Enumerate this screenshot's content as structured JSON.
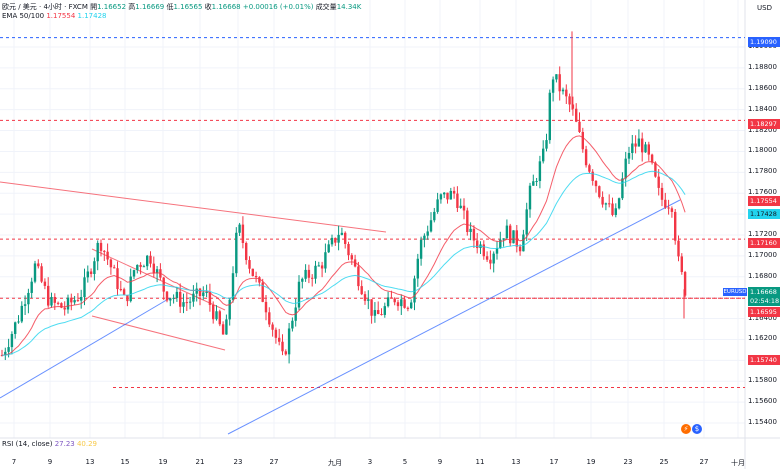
{
  "header": {
    "title": "欧元 / 美元 · 4小时 · FXCM",
    "o_label": "開",
    "o": "1.16652",
    "h_label": "高",
    "h": "1.16669",
    "l_label": "低",
    "l": "1.16565",
    "c_label": "收",
    "c": "1.16668",
    "change": "+0.00016 (+0.01%)",
    "vol_label": "成交量",
    "vol": "14.34K"
  },
  "ema": {
    "label": "EMA 50/100",
    "v1": "1.17554",
    "v2": "1.17428"
  },
  "rsi": {
    "label": "RSI (14, close)",
    "v1": "27.23",
    "v2": "40.29"
  },
  "currency": "USD",
  "symbol_tag": "EURUSD",
  "price_tags": [
    {
      "value": "1.19090",
      "color": "#2962ff",
      "text": "#ffffff"
    },
    {
      "value": "1.18297",
      "color": "#f23645",
      "text": "#ffffff"
    },
    {
      "value": "1.17554",
      "color": "#f23645",
      "text": "#ffffff"
    },
    {
      "value": "1.17428",
      "color": "#22d3ee",
      "text": "#131722"
    },
    {
      "value": "1.17160",
      "color": "#f23645",
      "text": "#ffffff"
    },
    {
      "value": "1.16668",
      "color": "#089981",
      "text": "#ffffff"
    },
    {
      "value": "02:54:18",
      "color": "#089981",
      "text": "#ffffff"
    },
    {
      "value": "1.16595",
      "color": "#f23645",
      "text": "#ffffff"
    },
    {
      "value": "1.15740",
      "color": "#f23645",
      "text": "#ffffff"
    }
  ],
  "chart_data": {
    "type": "candlestick",
    "y_ticks": [
      "1.19000",
      "1.18800",
      "1.18600",
      "1.18400",
      "1.18200",
      "1.18000",
      "1.17800",
      "1.17600",
      "1.17400",
      "1.17200",
      "1.17000",
      "1.16800",
      "1.16600",
      "1.16400",
      "1.16200",
      "1.16000",
      "1.15800",
      "1.15600",
      "1.15400"
    ],
    "x_ticks": [
      "7",
      "9",
      "13",
      "15",
      "19",
      "21",
      "23",
      "27",
      "九月",
      "3",
      "5",
      "9",
      "11",
      "13",
      "17",
      "19",
      "23",
      "25",
      "27",
      "十月"
    ],
    "horizontal_levels": [
      1.1909,
      1.18297,
      1.1716,
      1.16595,
      1.1574
    ],
    "colors": {
      "up": "#089981",
      "down": "#f23645",
      "ema50": "#f23645",
      "ema100": "#22d3ee"
    }
  }
}
